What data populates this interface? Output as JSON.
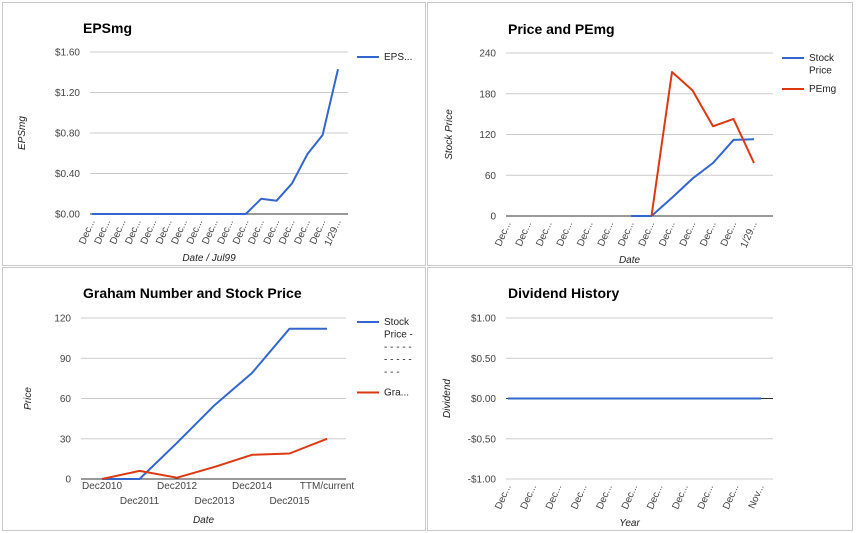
{
  "colors": {
    "blue": "#3366cc",
    "red": "#dc3912"
  },
  "chart_data": [
    {
      "type": "line",
      "title": "EPSmg",
      "xlabel": "Date / Jul99",
      "ylabel": "EPSmg",
      "ylim": [
        0,
        1.6
      ],
      "yticks": [
        "$0.00",
        "$0.40",
        "$0.80",
        "$1.20",
        "$1.60"
      ],
      "categories": [
        "Dec...",
        "Dec...",
        "Dec...",
        "Dec...",
        "Dec...",
        "Dec...",
        "Dec...",
        "Dec...",
        "Dec...",
        "Dec...",
        "Dec...",
        "Dec...",
        "Dec...",
        "Dec...",
        "Dec...",
        "Dec...",
        "1/29..."
      ],
      "x": [
        0,
        1,
        2,
        3,
        4,
        5,
        6,
        7,
        8,
        9,
        10,
        11,
        12,
        13,
        14,
        15,
        16
      ],
      "series": [
        {
          "name": "EPS...",
          "color": "#3366cc",
          "values": [
            0,
            0,
            0,
            0,
            0,
            0,
            0,
            0,
            0,
            0,
            0,
            0.15,
            0.13,
            0.3,
            0.59,
            0.78,
            1.43
          ]
        }
      ],
      "grid": true,
      "legend": "right"
    },
    {
      "type": "line",
      "title": "Price and PEmg",
      "xlabel": "Date",
      "ylabel": "Stock Price",
      "ylim": [
        0,
        240
      ],
      "yticks": [
        "0",
        "60",
        "120",
        "180",
        "240"
      ],
      "categories": [
        "Dec...",
        "Dec...",
        "Dec...",
        "Dec...",
        "Dec...",
        "Dec...",
        "Dec...",
        "Dec...",
        "Dec...",
        "Dec...",
        "Dec...",
        "Dec...",
        "1/29..."
      ],
      "x": [
        0,
        1,
        2,
        3,
        4,
        5,
        6,
        7,
        8,
        9,
        10,
        11,
        12
      ],
      "series": [
        {
          "name": "Stock Price",
          "legend_lines": [
            "Stock",
            "Price"
          ],
          "color": "#3366cc",
          "values": [
            null,
            null,
            null,
            null,
            null,
            null,
            0,
            0,
            27,
            55,
            78,
            112,
            113
          ]
        },
        {
          "name": "PEmg",
          "legend_lines": [
            "PEmg"
          ],
          "color": "#dc3912",
          "values": [
            null,
            null,
            null,
            null,
            null,
            null,
            null,
            0,
            212,
            185,
            132,
            143,
            78
          ]
        }
      ],
      "grid": true,
      "legend": "right"
    },
    {
      "type": "line",
      "title": "Graham Number and Stock Price",
      "xlabel": "Date",
      "ylabel": "Price",
      "ylim": [
        0,
        120
      ],
      "yticks": [
        "0",
        "30",
        "60",
        "90",
        "120"
      ],
      "categories": [
        "Dec2010",
        "Dec2011",
        "Dec2012",
        "Dec2013",
        "Dec2014",
        "Dec2015",
        "TTM/current"
      ],
      "x": [
        0,
        1,
        2,
        3,
        4,
        5,
        6
      ],
      "series": [
        {
          "name": "Stock Price - - - - - - - - - - - - - -",
          "legend_lines": [
            "Stock",
            "Price -",
            "- - - - -",
            "- - - - -",
            "- - -"
          ],
          "color": "#3366cc",
          "values": [
            0,
            0,
            27,
            55,
            79,
            112,
            112
          ]
        },
        {
          "name": "Gra...",
          "legend_lines": [
            "Gra..."
          ],
          "color": "#dc3912",
          "values": [
            0,
            6,
            1,
            9,
            18,
            19,
            30
          ]
        }
      ],
      "grid": true,
      "legend": "right"
    },
    {
      "type": "line",
      "title": "Dividend History",
      "xlabel": "Year",
      "ylabel": "Dividend",
      "ylim": [
        -1,
        1
      ],
      "yticks": [
        "-$1.00",
        "-$0.50",
        "$0.00",
        "$0.50",
        "$1.00"
      ],
      "categories": [
        "Dec...",
        "Dec...",
        "Dec...",
        "Dec...",
        "Dec...",
        "Dec...",
        "Dec...",
        "Dec...",
        "Dec...",
        "Dec...",
        "Nov..."
      ],
      "x": [
        0,
        1,
        2,
        3,
        4,
        5,
        6,
        7,
        8,
        9,
        10
      ],
      "series": [
        {
          "color": "#3366cc",
          "values": [
            0,
            0,
            0,
            0,
            0,
            0,
            0,
            0,
            0,
            0,
            0
          ]
        }
      ],
      "grid": true,
      "legend": "none"
    }
  ]
}
